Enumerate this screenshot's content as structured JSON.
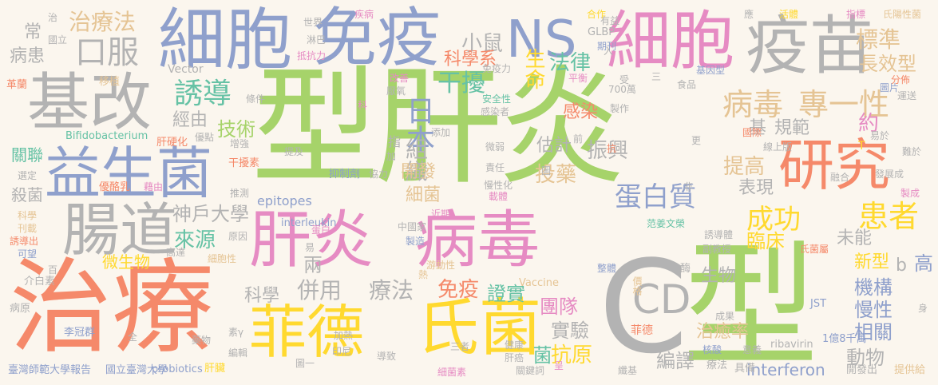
{
  "words": [
    {
      "text": "型肝炎",
      "color": "#a6d36a"
    },
    {
      "text": "治療",
      "color": "#f5896a"
    },
    {
      "text": "型",
      "color": "#a6d36a"
    },
    {
      "text": "C",
      "color": "#b3b3b3"
    },
    {
      "text": "細胞",
      "color": "#8fa0cc"
    },
    {
      "text": "免疫",
      "color": "#8fa0cc"
    },
    {
      "text": "NS",
      "color": "#8fa0cc"
    },
    {
      "text": "細胞",
      "color": "#e68bc3"
    },
    {
      "text": "疫苗",
      "color": "#b3b3b3"
    },
    {
      "text": "基改",
      "color": "#b3b3b3"
    },
    {
      "text": "益生菌",
      "color": "#8fa0cc"
    },
    {
      "text": "腸道",
      "color": "#b3b3b3"
    },
    {
      "text": "肝炎",
      "color": "#e68bc3"
    },
    {
      "text": "病毒",
      "color": "#e68bc3"
    },
    {
      "text": "菲德",
      "color": "#ffd92f"
    },
    {
      "text": "氏菌",
      "color": "#ffd92f"
    },
    {
      "text": "研究",
      "color": "#f5896a"
    },
    {
      "text": "CD",
      "color": "#b3b3b3"
    },
    {
      "text": "口服",
      "color": "#b3b3b3"
    },
    {
      "text": "治療法",
      "color": "#e5c494"
    },
    {
      "text": "誘導",
      "color": "#66c2a5"
    },
    {
      "text": "病毒",
      "color": "#e5c494"
    },
    {
      "text": "專一性",
      "color": "#e5c494"
    },
    {
      "text": "標準",
      "color": "#e5c494"
    },
    {
      "text": "長效型",
      "color": "#e5c494"
    },
    {
      "text": "小鼠",
      "color": "#b3b3b3"
    },
    {
      "text": "科學系",
      "color": "#f5896a"
    },
    {
      "text": "生命",
      "color": "#ffd92f"
    },
    {
      "text": "法律",
      "color": "#66c2a5"
    },
    {
      "text": "干擾",
      "color": "#66c2a5"
    },
    {
      "text": "日本",
      "color": "#8fa0cc"
    },
    {
      "text": "組織",
      "color": "#b3b3b3"
    },
    {
      "text": "開發",
      "color": "#e5c494"
    },
    {
      "text": "細菌",
      "color": "#e5c494"
    },
    {
      "text": "技術",
      "color": "#a6d36a"
    },
    {
      "text": "經由",
      "color": "#b3b3b3"
    },
    {
      "text": "蛋白質",
      "color": "#8fa0cc"
    },
    {
      "text": "成功",
      "color": "#ffd92f"
    },
    {
      "text": "患者",
      "color": "#ffd92f"
    },
    {
      "text": "未能",
      "color": "#b3b3b3"
    },
    {
      "text": "新型",
      "color": "#ffd92f"
    },
    {
      "text": "感染",
      "color": "#f5896a"
    },
    {
      "text": "估計",
      "color": "#b3b3b3"
    },
    {
      "text": "振興",
      "color": "#b3b3b3"
    },
    {
      "text": "投藥",
      "color": "#e5c494"
    },
    {
      "text": "提高",
      "color": "#e5c494"
    },
    {
      "text": "表現",
      "color": "#b3b3b3"
    },
    {
      "text": "基",
      "color": "#b3b3b3"
    },
    {
      "text": "規範",
      "color": "#b3b3b3"
    },
    {
      "text": "約",
      "color": "#e68bc3"
    },
    {
      "text": "神戶大學",
      "color": "#b3b3b3"
    },
    {
      "text": "來源",
      "color": "#66c2a5"
    },
    {
      "text": "微生物",
      "color": "#ffd92f"
    },
    {
      "text": "科學",
      "color": "#b3b3b3"
    },
    {
      "text": "併用",
      "color": "#b3b3b3"
    },
    {
      "text": "療法",
      "color": "#b3b3b3"
    },
    {
      "text": "兩",
      "color": "#b3b3b3"
    },
    {
      "text": "免疫",
      "color": "#f5896a"
    },
    {
      "text": "證實",
      "color": "#66c2a5"
    },
    {
      "text": "團隊",
      "color": "#e68bc3"
    },
    {
      "text": "實驗",
      "color": "#b3b3b3"
    },
    {
      "text": "抗原",
      "color": "#ffd92f"
    },
    {
      "text": "菌",
      "color": "#66c2a5"
    },
    {
      "text": "臨床",
      "color": "#ffd92f"
    },
    {
      "text": "生物",
      "color": "#b3b3b3"
    },
    {
      "text": "機構",
      "color": "#8fa0cc"
    },
    {
      "text": "慢性",
      "color": "#8fa0cc"
    },
    {
      "text": "相關",
      "color": "#8fa0cc"
    },
    {
      "text": "治癒率",
      "color": "#e5c494"
    },
    {
      "text": "編譯",
      "color": "#b3b3b3"
    },
    {
      "text": "動物",
      "color": "#b3b3b3"
    },
    {
      "text": "interferon",
      "color": "#8fa0cc"
    },
    {
      "text": "epitopes",
      "color": "#8fa0cc"
    },
    {
      "text": "interleukin",
      "color": "#8fa0cc"
    },
    {
      "text": "關聯",
      "color": "#66c2a5"
    },
    {
      "text": "殺菌",
      "color": "#b3b3b3"
    },
    {
      "text": "常",
      "color": "#b3b3b3"
    },
    {
      "text": "病患",
      "color": "#b3b3b3"
    },
    {
      "text": "b",
      "color": "#b3b3b3"
    },
    {
      "text": "高",
      "color": "#8fa0cc"
    },
    {
      "text": "Bifidobacterium",
      "color": "#66c2a5"
    },
    {
      "text": "Vector",
      "color": "#b3b3b3"
    },
    {
      "text": "Vaccine",
      "color": "#e5c494"
    },
    {
      "text": "probiotics",
      "color": "#8fa0cc"
    },
    {
      "text": "ribavirin",
      "color": "#b3b3b3"
    },
    {
      "text": "GLBP",
      "color": "#b3b3b3"
    },
    {
      "text": "JST",
      "color": "#8fa0cc"
    },
    {
      "text": "T",
      "color": "#ffd92f"
    },
    {
      "text": "臺灣師範大學報告",
      "color": "#8fa0cc"
    },
    {
      "text": "國立臺灣大學",
      "color": "#8fa0cc"
    },
    {
      "text": "肝臟",
      "color": "#ffd92f"
    },
    {
      "text": "李冠群",
      "color": "#8fa0cc"
    },
    {
      "text": "菲德",
      "color": "#f5896a"
    },
    {
      "text": "1億8千萬",
      "color": "#8fa0cc"
    },
    {
      "text": "開發出",
      "color": "#b3b3b3"
    },
    {
      "text": "提供給",
      "color": "#e5c494"
    },
    {
      "text": "具備",
      "color": "#b3b3b3"
    },
    {
      "text": "療法",
      "color": "#b3b3b3"
    },
    {
      "text": "圖一",
      "color": "#b3b3b3"
    },
    {
      "text": "細菌素",
      "color": "#e68bc3"
    },
    {
      "text": "介白素",
      "color": "#b3b3b3"
    },
    {
      "text": "病原",
      "color": "#b3b3b3"
    },
    {
      "text": "革蘭",
      "color": "#f5896a"
    },
    {
      "text": "移植",
      "color": "#e5c494"
    },
    {
      "text": "條件",
      "color": "#b3b3b3"
    },
    {
      "text": "肝硬化",
      "color": "#f5896a"
    },
    {
      "text": "優點",
      "color": "#b3b3b3"
    },
    {
      "text": "增強",
      "color": "#b3b3b3"
    },
    {
      "text": "干擾素",
      "color": "#f5896a"
    },
    {
      "text": "抑制劑",
      "color": "#8fa0cc"
    },
    {
      "text": "協力",
      "color": "#b3b3b3"
    },
    {
      "text": "推測",
      "color": "#b3b3b3"
    },
    {
      "text": "優酪乳",
      "color": "#f5896a"
    },
    {
      "text": "藉由",
      "color": "#e68bc3"
    },
    {
      "text": "選定",
      "color": "#b3b3b3"
    },
    {
      "text": "科學",
      "color": "#e5c494"
    },
    {
      "text": "刊載",
      "color": "#e5c494"
    },
    {
      "text": "誘導出",
      "color": "#f5896a"
    },
    {
      "text": "可望",
      "color": "#8fa0cc"
    },
    {
      "text": "蛋白",
      "color": "#e68bc3"
    },
    {
      "text": "原因",
      "color": "#b3b3b3"
    },
    {
      "text": "高達",
      "color": "#b3b3b3"
    },
    {
      "text": "細胞性",
      "color": "#e5c494"
    },
    {
      "text": "中國家",
      "color": "#b3b3b3"
    },
    {
      "text": "製造",
      "color": "#8fa0cc"
    },
    {
      "text": "游動性",
      "color": "#e5c494"
    },
    {
      "text": "整體",
      "color": "#8fa0cc"
    },
    {
      "text": "價格",
      "color": "#e5c494"
    },
    {
      "text": "成果",
      "color": "#b3b3b3"
    },
    {
      "text": "意義",
      "color": "#b3b3b3"
    },
    {
      "text": "核酸",
      "color": "#8fa0cc"
    },
    {
      "text": "酶",
      "color": "#b3b3b3"
    },
    {
      "text": "副教授",
      "color": "#b3b3b3"
    },
    {
      "text": "誘導體",
      "color": "#b3b3b3"
    },
    {
      "text": "范姜文榮",
      "color": "#66c2a5"
    },
    {
      "text": "氏菌屬",
      "color": "#f5896a"
    },
    {
      "text": "製成",
      "color": "#e68bc3"
    },
    {
      "text": "發展成",
      "color": "#b3b3b3"
    },
    {
      "text": "融合",
      "color": "#b3b3b3"
    },
    {
      "text": "難於",
      "color": "#b3b3b3"
    },
    {
      "text": "易於",
      "color": "#b3b3b3"
    },
    {
      "text": "國際",
      "color": "#f5896a"
    },
    {
      "text": "線上版",
      "color": "#b3b3b3"
    },
    {
      "text": "食品",
      "color": "#b3b3b3"
    },
    {
      "text": "基因型",
      "color": "#8fa0cc"
    },
    {
      "text": "分佈",
      "color": "#f5896a"
    },
    {
      "text": "運送",
      "color": "#b3b3b3"
    },
    {
      "text": "活體",
      "color": "#ffd92f"
    },
    {
      "text": "指標",
      "color": "#e68bc3"
    },
    {
      "text": "氏陽性菌",
      "color": "#e5c494"
    },
    {
      "text": "世界",
      "color": "#b3b3b3"
    },
    {
      "text": "疾病",
      "color": "#e68bc3"
    },
    {
      "text": "國立",
      "color": "#b3b3b3"
    },
    {
      "text": "治",
      "color": "#b3b3b3"
    },
    {
      "text": "淋巴",
      "color": "#b3b3b3"
    },
    {
      "text": "抵抗力",
      "color": "#e68bc3"
    },
    {
      "text": "改善",
      "color": "#e68bc3"
    },
    {
      "text": "厭氧",
      "color": "#b3b3b3"
    },
    {
      "text": "免疫力",
      "color": "#b3b3b3"
    },
    {
      "text": "安全性",
      "color": "#66c2a5"
    },
    {
      "text": "感染者",
      "color": "#b3b3b3"
    },
    {
      "text": "平衡",
      "color": "#e68bc3"
    },
    {
      "text": "期刊",
      "color": "#8fa0cc"
    },
    {
      "text": "有益",
      "color": "#b3b3b3"
    },
    {
      "text": "合作",
      "color": "#ffd92f"
    },
    {
      "text": "製作",
      "color": "#b3b3b3"
    },
    {
      "text": "700萬",
      "color": "#b3b3b3"
    },
    {
      "text": "添加",
      "color": "#b3b3b3"
    },
    {
      "text": "加",
      "color": "#b3b3b3"
    },
    {
      "text": "提及",
      "color": "#b3b3b3"
    },
    {
      "text": "微弱",
      "color": "#b3b3b3"
    },
    {
      "text": "責任",
      "color": "#b3b3b3"
    },
    {
      "text": "慢性化",
      "color": "#b3b3b3"
    },
    {
      "text": "載體",
      "color": "#e68bc3"
    },
    {
      "text": "近期",
      "color": "#e68bc3"
    },
    {
      "text": "熱",
      "color": "#e5c494"
    },
    {
      "text": "藥物",
      "color": "#b3b3b3"
    },
    {
      "text": "素γ",
      "color": "#b3b3b3"
    },
    {
      "text": "編輯",
      "color": "#b3b3b3"
    },
    {
      "text": "加熱",
      "color": "#b3b3b3"
    },
    {
      "text": "印尼",
      "color": "#b3b3b3"
    },
    {
      "text": "三者",
      "color": "#b3b3b3"
    },
    {
      "text": "健康",
      "color": "#b3b3b3"
    },
    {
      "text": "肝癌",
      "color": "#b3b3b3"
    },
    {
      "text": "關鍵詞",
      "color": "#b3b3b3"
    },
    {
      "text": "導致",
      "color": "#b3b3b3"
    },
    {
      "text": "呈",
      "color": "#e68bc3"
    },
    {
      "text": "纖基",
      "color": "#b3b3b3"
    },
    {
      "text": "全",
      "color": "#b3b3b3"
    },
    {
      "text": "百",
      "color": "#b3b3b3"
    },
    {
      "text": "身",
      "color": "#b3b3b3"
    },
    {
      "text": "更",
      "color": "#b3b3b3"
    },
    {
      "text": "非",
      "color": "#b3b3b3"
    },
    {
      "text": "抗",
      "color": "#f5896a"
    },
    {
      "text": "前",
      "color": "#b3b3b3"
    },
    {
      "text": "受",
      "color": "#b3b3b3"
    },
    {
      "text": "三",
      "color": "#b3b3b3"
    },
    {
      "text": "入",
      "color": "#b3b3b3"
    },
    {
      "text": "圖",
      "color": "#b3b3b3"
    },
    {
      "text": "指",
      "color": "#b3b3b3"
    },
    {
      "text": "易",
      "color": "#b3b3b3"
    },
    {
      "text": "應",
      "color": "#b3b3b3"
    },
    {
      "text": "圖片",
      "color": "#8fa0cc"
    },
    {
      "text": "科",
      "color": "#e68bc3"
    }
  ]
}
